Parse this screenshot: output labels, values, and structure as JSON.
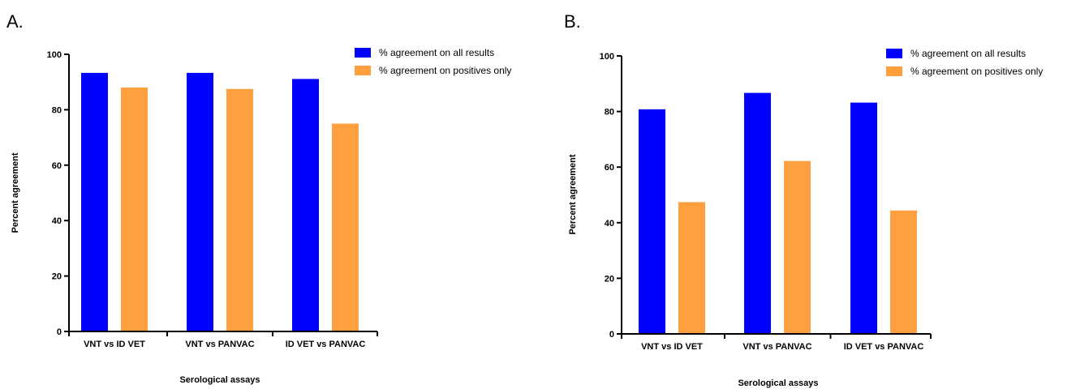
{
  "chart_data": [
    {
      "type": "bar",
      "panel": "A.",
      "categories": [
        "VNT vs ID VET",
        "VNT vs PANVAC",
        "ID VET vs PANVAC"
      ],
      "series": [
        {
          "name": "% agreement on all results",
          "values": [
            93.3,
            93.3,
            91.1
          ],
          "color": "#0000ff"
        },
        {
          "name": "% agreement on positives only",
          "values": [
            88.0,
            87.5,
            75.0
          ],
          "color": "#ffa040"
        }
      ],
      "title": "",
      "xlabel": "Serological assays",
      "ylabel": "Percent agreement",
      "ylim": [
        0,
        100
      ],
      "yticks": [
        "0",
        "20",
        "40",
        "60",
        "80",
        "100"
      ],
      "grid": false,
      "legend": "top-right"
    },
    {
      "type": "bar",
      "panel": "B.",
      "categories": [
        "VNT vs ID VET",
        "VNT vs PANVAC",
        "ID VET vs PANVAC"
      ],
      "series": [
        {
          "name": "% agreement on all results",
          "values": [
            80.8,
            86.7,
            83.2
          ],
          "color": "#0000ff"
        },
        {
          "name": "% agreement on positives only",
          "values": [
            47.4,
            62.2,
            44.4
          ],
          "color": "#ffa040"
        }
      ],
      "title": "",
      "xlabel": "Serological assays",
      "ylabel": "Percent agreement",
      "ylim": [
        0,
        100
      ],
      "yticks": [
        "0",
        "20",
        "40",
        "60",
        "80",
        "100"
      ],
      "grid": false,
      "legend": "top-right"
    }
  ]
}
